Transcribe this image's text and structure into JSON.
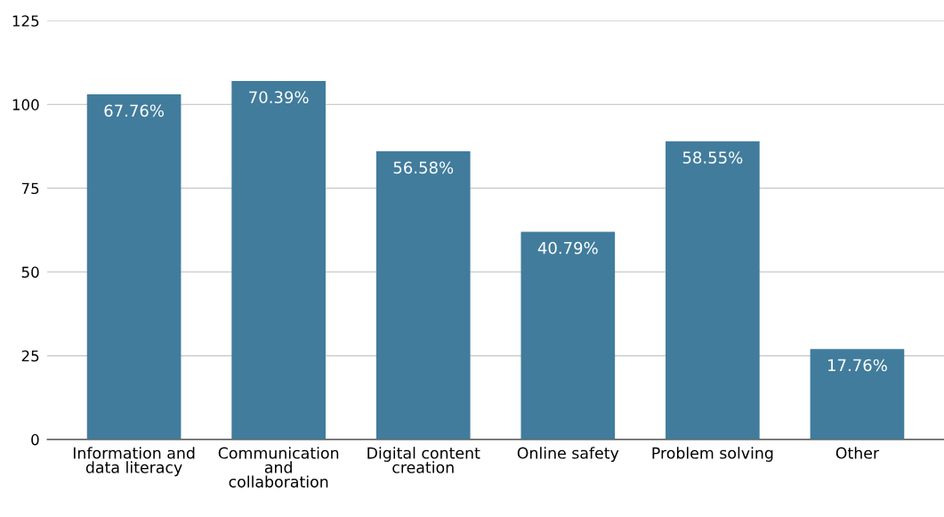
{
  "chart_data": {
    "type": "bar",
    "categories": [
      "Information and\ndata literacy",
      "Communication\nand\ncollaboration",
      "Digital content\ncreation",
      "Online safety",
      "Problem solving",
      "Other"
    ],
    "values": [
      103,
      107,
      86,
      62,
      89,
      27
    ],
    "annotations": [
      {
        "text": "67.76%",
        "x": "Information and\ndata literacy",
        "y": 103
      },
      {
        "text": "70.39%",
        "x": "Communication\nand\ncollaboration",
        "y": 107
      },
      {
        "text": "56.58%",
        "x": "Digital content\ncreation",
        "y": 86
      },
      {
        "text": "40.79%",
        "x": "Online safety",
        "y": 62
      },
      {
        "text": "58.55%",
        "x": "Problem solving",
        "y": 89
      },
      {
        "text": "17.76%",
        "x": "Other",
        "y": 27
      }
    ],
    "color": "#417c9c",
    "ylim": [
      0,
      125
    ],
    "yticks": [
      0,
      25,
      50,
      75,
      100,
      125
    ],
    "grid": "y"
  }
}
